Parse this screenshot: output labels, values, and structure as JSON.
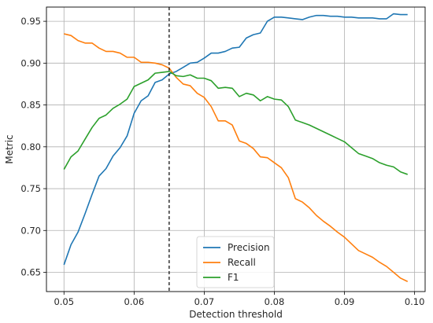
{
  "chart_data": {
    "type": "line",
    "title": "",
    "xlabel": "Detection threshold",
    "ylabel": "Metric",
    "xlim": [
      0.0475,
      0.1015
    ],
    "ylim": [
      0.627,
      0.967
    ],
    "xticks": [
      0.05,
      0.06,
      0.07,
      0.08,
      0.09,
      0.1
    ],
    "xtick_labels": [
      "0.05",
      "0.06",
      "0.07",
      "0.08",
      "0.09",
      "0.10"
    ],
    "yticks": [
      0.65,
      0.7,
      0.75,
      0.8,
      0.85,
      0.9,
      0.95
    ],
    "ytick_labels": [
      "0.65",
      "0.70",
      "0.75",
      "0.80",
      "0.85",
      "0.90",
      "0.95"
    ],
    "grid": true,
    "legend_position": "bottom-center",
    "vline": {
      "x": 0.065,
      "style": "dashed",
      "color": "#000000"
    },
    "x": [
      0.05,
      0.051,
      0.052,
      0.053,
      0.054,
      0.055,
      0.056,
      0.057,
      0.058,
      0.059,
      0.06,
      0.061,
      0.062,
      0.063,
      0.064,
      0.065,
      0.066,
      0.067,
      0.068,
      0.069,
      0.07,
      0.071,
      0.072,
      0.073,
      0.074,
      0.075,
      0.076,
      0.077,
      0.078,
      0.079,
      0.08,
      0.081,
      0.082,
      0.083,
      0.084,
      0.085,
      0.086,
      0.087,
      0.088,
      0.089,
      0.09,
      0.091,
      0.092,
      0.093,
      0.094,
      0.095,
      0.096,
      0.097,
      0.098,
      0.099
    ],
    "series": [
      {
        "name": "Precision",
        "color": "#1f77b4",
        "values": [
          0.659,
          0.683,
          0.698,
          0.72,
          0.743,
          0.765,
          0.774,
          0.789,
          0.799,
          0.813,
          0.84,
          0.855,
          0.861,
          0.877,
          0.88,
          0.887,
          0.89,
          0.895,
          0.9,
          0.901,
          0.906,
          0.912,
          0.912,
          0.914,
          0.918,
          0.919,
          0.93,
          0.934,
          0.936,
          0.95,
          0.955,
          0.955,
          0.954,
          0.953,
          0.952,
          0.955,
          0.957,
          0.957,
          0.956,
          0.956,
          0.955,
          0.955,
          0.954,
          0.954,
          0.954,
          0.953,
          0.953,
          0.959,
          0.958,
          0.958
        ]
      },
      {
        "name": "Recall",
        "color": "#ff7f0e",
        "values": [
          0.935,
          0.933,
          0.927,
          0.924,
          0.924,
          0.918,
          0.914,
          0.914,
          0.912,
          0.907,
          0.907,
          0.901,
          0.901,
          0.9,
          0.898,
          0.894,
          0.883,
          0.875,
          0.873,
          0.864,
          0.859,
          0.848,
          0.831,
          0.831,
          0.826,
          0.807,
          0.804,
          0.798,
          0.788,
          0.787,
          0.781,
          0.775,
          0.763,
          0.738,
          0.734,
          0.727,
          0.718,
          0.711,
          0.705,
          0.698,
          0.692,
          0.684,
          0.676,
          0.672,
          0.668,
          0.662,
          0.657,
          0.65,
          0.643,
          0.639
        ]
      },
      {
        "name": "F1",
        "color": "#2ca02c",
        "values": [
          0.773,
          0.788,
          0.795,
          0.809,
          0.823,
          0.834,
          0.838,
          0.846,
          0.851,
          0.857,
          0.872,
          0.876,
          0.88,
          0.888,
          0.889,
          0.89,
          0.885,
          0.884,
          0.886,
          0.882,
          0.882,
          0.879,
          0.87,
          0.871,
          0.87,
          0.86,
          0.864,
          0.862,
          0.855,
          0.86,
          0.857,
          0.856,
          0.848,
          0.832,
          0.829,
          0.826,
          0.822,
          0.818,
          0.814,
          0.81,
          0.806,
          0.799,
          0.792,
          0.789,
          0.786,
          0.781,
          0.778,
          0.776,
          0.77,
          0.767
        ]
      }
    ]
  }
}
